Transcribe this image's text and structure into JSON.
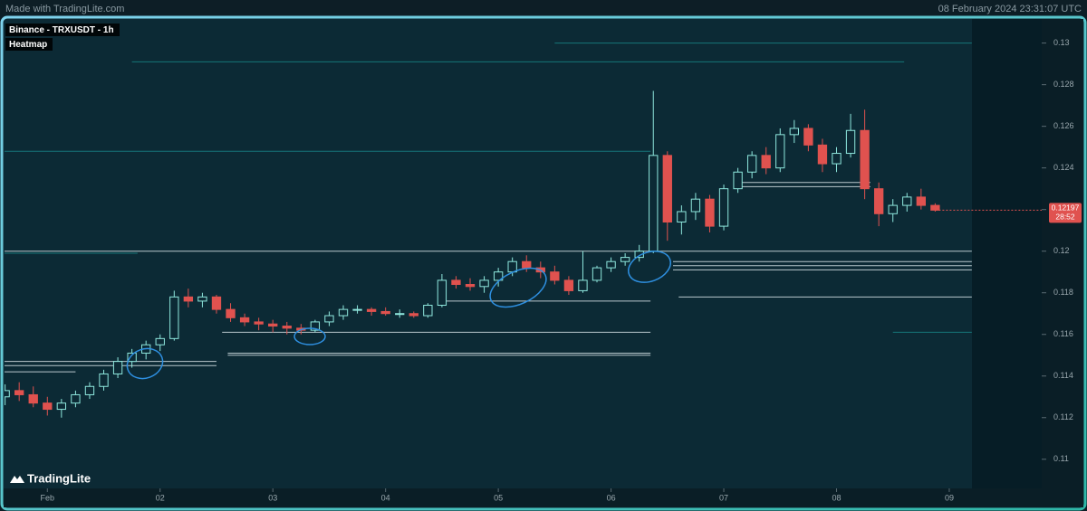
{
  "header": {
    "credit": "Made with TradingLite.com",
    "timestamp": "08 February 2024 23:31:07 UTC"
  },
  "chart_data": {
    "type": "candlestick",
    "title": "Binance - TRXUSDT - 1h",
    "subtitle": "Heatmap",
    "brand": "TradingLite",
    "last_price": 0.12197,
    "countdown": "28:52",
    "up_color": "#8fe8de",
    "down_color": "#e0524f",
    "level_color": "#d8e4e8",
    "heat_color": "#1fb5b0",
    "xlim": [
      0.62,
      9.82
    ],
    "ylim": [
      0.1086,
      0.1312
    ],
    "xticks": [
      {
        "value": 1,
        "label": "Feb"
      },
      {
        "value": 2,
        "label": "02"
      },
      {
        "value": 3,
        "label": "03"
      },
      {
        "value": 4,
        "label": "04"
      },
      {
        "value": 5,
        "label": "05"
      },
      {
        "value": 6,
        "label": "06"
      },
      {
        "value": 7,
        "label": "07"
      },
      {
        "value": 8,
        "label": "08"
      },
      {
        "value": 9,
        "label": "09"
      }
    ],
    "yticks": [
      0.11,
      0.112,
      0.114,
      0.116,
      0.118,
      0.12,
      0.122,
      0.124,
      0.126,
      0.128,
      0.13
    ],
    "x": [
      0.625,
      0.75,
      0.875,
      1.0,
      1.125,
      1.25,
      1.375,
      1.5,
      1.625,
      1.75,
      1.875,
      2.0,
      2.125,
      2.25,
      2.375,
      2.5,
      2.625,
      2.75,
      2.875,
      3.0,
      3.125,
      3.25,
      3.375,
      3.5,
      3.625,
      3.75,
      3.875,
      4.0,
      4.125,
      4.25,
      4.375,
      4.5,
      4.625,
      4.75,
      4.875,
      5.0,
      5.125,
      5.25,
      5.375,
      5.5,
      5.625,
      5.75,
      5.875,
      6.0,
      6.125,
      6.25,
      6.375,
      6.5,
      6.625,
      6.75,
      6.875,
      7.0,
      7.125,
      7.25,
      7.375,
      7.5,
      7.625,
      7.75,
      7.875,
      8.0,
      8.125,
      8.25,
      8.375,
      8.5,
      8.625,
      8.75,
      8.875
    ],
    "candles": [
      [
        0.113,
        0.1136,
        0.1126,
        0.1133
      ],
      [
        0.1133,
        0.1137,
        0.1128,
        0.1131
      ],
      [
        0.1131,
        0.1135,
        0.1125,
        0.1127
      ],
      [
        0.1127,
        0.113,
        0.1121,
        0.1124
      ],
      [
        0.1124,
        0.1129,
        0.112,
        0.1127
      ],
      [
        0.1127,
        0.1133,
        0.1125,
        0.1131
      ],
      [
        0.1131,
        0.1137,
        0.1129,
        0.1135
      ],
      [
        0.1135,
        0.1143,
        0.1133,
        0.1141
      ],
      [
        0.1141,
        0.1149,
        0.1139,
        0.1147
      ],
      [
        0.1147,
        0.1153,
        0.1144,
        0.1151
      ],
      [
        0.1151,
        0.1157,
        0.1148,
        0.1155
      ],
      [
        0.1155,
        0.116,
        0.1152,
        0.1158
      ],
      [
        0.1158,
        0.1181,
        0.1157,
        0.1178
      ],
      [
        0.1178,
        0.1182,
        0.1173,
        0.1176
      ],
      [
        0.1176,
        0.118,
        0.1173,
        0.1178
      ],
      [
        0.1178,
        0.1179,
        0.117,
        0.1172
      ],
      [
        0.1172,
        0.1175,
        0.1166,
        0.1168
      ],
      [
        0.1168,
        0.117,
        0.1164,
        0.1166
      ],
      [
        0.1166,
        0.1168,
        0.1162,
        0.1165
      ],
      [
        0.1165,
        0.1167,
        0.1161,
        0.1164
      ],
      [
        0.1164,
        0.1166,
        0.116,
        0.1163
      ],
      [
        0.1163,
        0.1165,
        0.116,
        0.1162
      ],
      [
        0.1162,
        0.1167,
        0.1161,
        0.1166
      ],
      [
        0.1166,
        0.1171,
        0.1164,
        0.1169
      ],
      [
        0.1169,
        0.1174,
        0.1167,
        0.1172
      ],
      [
        0.1172,
        0.1174,
        0.117,
        0.1172
      ],
      [
        0.1172,
        0.1173,
        0.1169,
        0.1171
      ],
      [
        0.1171,
        0.1173,
        0.1169,
        0.117
      ],
      [
        0.117,
        0.1172,
        0.1168,
        0.117
      ],
      [
        0.117,
        0.1171,
        0.1168,
        0.1169
      ],
      [
        0.1169,
        0.1175,
        0.1168,
        0.1174
      ],
      [
        0.1174,
        0.1189,
        0.1173,
        0.1186
      ],
      [
        0.1186,
        0.1188,
        0.1182,
        0.1184
      ],
      [
        0.1184,
        0.1187,
        0.1181,
        0.1183
      ],
      [
        0.1183,
        0.1188,
        0.118,
        0.1186
      ],
      [
        0.1186,
        0.1192,
        0.1183,
        0.119
      ],
      [
        0.119,
        0.1197,
        0.1188,
        0.1195
      ],
      [
        0.1195,
        0.1198,
        0.119,
        0.1192
      ],
      [
        0.1192,
        0.1195,
        0.1187,
        0.119
      ],
      [
        0.119,
        0.1193,
        0.1184,
        0.1186
      ],
      [
        0.1186,
        0.1188,
        0.1179,
        0.1181
      ],
      [
        0.1181,
        0.12,
        0.118,
        0.1186
      ],
      [
        0.1186,
        0.1193,
        0.1185,
        0.1192
      ],
      [
        0.1192,
        0.1197,
        0.119,
        0.1195
      ],
      [
        0.1195,
        0.1199,
        0.1193,
        0.1197
      ],
      [
        0.1197,
        0.1203,
        0.1195,
        0.12
      ],
      [
        0.12,
        0.1277,
        0.1199,
        0.1246
      ],
      [
        0.1246,
        0.1248,
        0.1205,
        0.1214
      ],
      [
        0.1214,
        0.1222,
        0.1208,
        0.1219
      ],
      [
        0.1219,
        0.1228,
        0.1215,
        0.1225
      ],
      [
        0.1225,
        0.1227,
        0.1209,
        0.1212
      ],
      [
        0.1212,
        0.1232,
        0.121,
        0.123
      ],
      [
        0.123,
        0.124,
        0.1228,
        0.1238
      ],
      [
        0.1238,
        0.1248,
        0.1235,
        0.1246
      ],
      [
        0.1246,
        0.125,
        0.1237,
        0.124
      ],
      [
        0.124,
        0.1259,
        0.1238,
        0.1256
      ],
      [
        0.1256,
        0.1263,
        0.1252,
        0.1259
      ],
      [
        0.1259,
        0.1261,
        0.1248,
        0.1251
      ],
      [
        0.1251,
        0.1254,
        0.1238,
        0.1242
      ],
      [
        0.1242,
        0.125,
        0.1238,
        0.1247
      ],
      [
        0.1247,
        0.1266,
        0.1245,
        0.1258
      ],
      [
        0.1258,
        0.1268,
        0.1225,
        0.123
      ],
      [
        0.123,
        0.1233,
        0.1212,
        0.1218
      ],
      [
        0.1218,
        0.1225,
        0.1214,
        0.1222
      ],
      [
        0.1222,
        0.1228,
        0.1219,
        0.1226
      ],
      [
        0.1226,
        0.123,
        0.122,
        0.1222
      ],
      [
        0.1222,
        0.1223,
        0.1219,
        0.12197
      ]
    ],
    "levels": [
      {
        "price": 0.12,
        "from": 0.62,
        "to": 9.2
      },
      {
        "price": 0.1195,
        "from": 6.55,
        "to": 9.2
      },
      {
        "price": 0.1193,
        "from": 6.55,
        "to": 9.2
      },
      {
        "price": 0.1191,
        "from": 6.55,
        "to": 9.2
      },
      {
        "price": 0.1178,
        "from": 6.6,
        "to": 9.2
      },
      {
        "price": 0.1176,
        "from": 4.5,
        "to": 6.35
      },
      {
        "price": 0.1161,
        "from": 2.55,
        "to": 6.35
      },
      {
        "price": 0.1151,
        "from": 2.6,
        "to": 6.35
      },
      {
        "price": 0.115,
        "from": 2.6,
        "to": 6.35
      },
      {
        "price": 0.1147,
        "from": 0.62,
        "to": 2.5
      },
      {
        "price": 0.1145,
        "from": 0.62,
        "to": 2.5
      },
      {
        "price": 0.1142,
        "from": 0.62,
        "to": 1.25
      },
      {
        "price": 0.1233,
        "from": 7.1,
        "to": 8.3
      },
      {
        "price": 0.1231,
        "from": 7.1,
        "to": 8.3
      }
    ],
    "heat_levels": [
      {
        "price": 0.13,
        "from": 5.5,
        "to": 9.2
      },
      {
        "price": 0.1291,
        "from": 1.75,
        "to": 8.6
      },
      {
        "price": 0.1248,
        "from": 0.62,
        "to": 6.35
      },
      {
        "price": 0.1199,
        "from": 0.62,
        "to": 1.8
      },
      {
        "price": 0.1161,
        "from": 8.5,
        "to": 9.2
      }
    ]
  }
}
